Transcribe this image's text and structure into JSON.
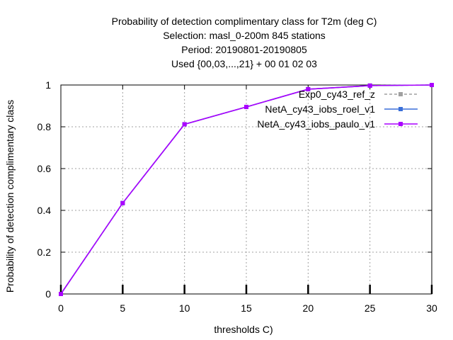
{
  "chart_data": {
    "type": "line",
    "title_lines": [
      "Probability of detection complimentary class  for T2m (deg C)",
      "Selection: masl_0-200m    845 stations",
      "Period: 20190801-20190805",
      "Used {00,03,...,21} + 00 01 02 03"
    ],
    "xlabel": "thresholds C)",
    "ylabel": "Probability of detection complimentary class",
    "xlim": [
      0,
      30
    ],
    "ylim": [
      0,
      1
    ],
    "x_ticks": [
      0,
      5,
      10,
      15,
      20,
      25,
      30
    ],
    "y_ticks": [
      0,
      0.2,
      0.4,
      0.6,
      0.8,
      1
    ],
    "y_tick_labels": [
      "0",
      "0.2",
      "0.4",
      "0.6",
      "0.8",
      "1"
    ],
    "grid": true,
    "legend_position": "top-right",
    "x": [
      0,
      5,
      10,
      15,
      20,
      25,
      30
    ],
    "series": [
      {
        "name": "Exp0_cy43_ref_z",
        "values": [
          0,
          0.435,
          0.812,
          0.895,
          0.98,
          0.997,
          1.0
        ],
        "color": "#a0a0a0",
        "dashed": true
      },
      {
        "name": "NetA_cy43_iobs_roel_v1",
        "values": [
          0,
          0.435,
          0.812,
          0.895,
          0.98,
          0.997,
          1.0
        ],
        "color": "#3a6fd8",
        "dashed": false
      },
      {
        "name": "NetA_cy43_iobs_paulo_v1",
        "values": [
          0,
          0.435,
          0.812,
          0.895,
          0.98,
          0.997,
          1.0
        ],
        "color": "#aa00ff",
        "dashed": false
      }
    ]
  }
}
